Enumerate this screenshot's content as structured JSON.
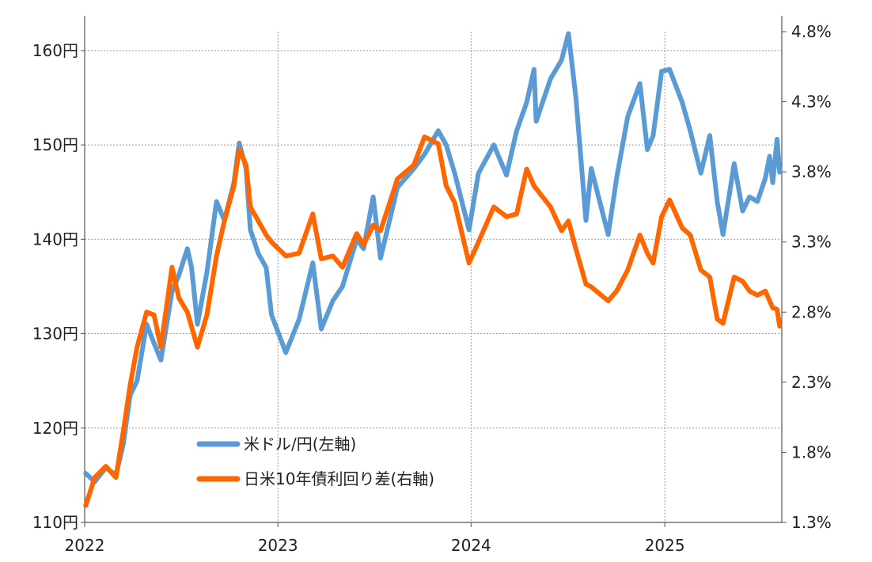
{
  "chart_data": {
    "type": "line",
    "x_axis": {
      "type": "date",
      "range": [
        "2022-01-01",
        "2025-08-10"
      ],
      "tick_labels": [
        "2022",
        "2023",
        "2024",
        "2025"
      ],
      "tick_dates": [
        "2022-01-01",
        "2023-01-01",
        "2024-01-01",
        "2025-01-01"
      ]
    },
    "y_left": {
      "range": [
        110,
        162
      ],
      "tick_values": [
        110,
        120,
        130,
        140,
        150,
        160
      ],
      "tick_labels": [
        "110円",
        "120円",
        "130円",
        "140円",
        "150円",
        "160円"
      ],
      "grid": true
    },
    "y_right": {
      "range": [
        1.3,
        4.8
      ],
      "tick_values": [
        1.3,
        1.8,
        2.3,
        2.8,
        3.3,
        3.8,
        4.3,
        4.8
      ],
      "tick_labels": [
        "1.3%",
        "1.8%",
        "2.3%",
        "2.8%",
        "3.3%",
        "3.8%",
        "4.3%",
        "4.8%"
      ]
    },
    "legend": {
      "placement": "bottom-center"
    },
    "series": [
      {
        "name": "米ドル/円(左軸)",
        "axis": "left",
        "color": "#5b9bd5",
        "points": [
          [
            "2022-01-03",
            115.2
          ],
          [
            "2022-01-20",
            114.3
          ],
          [
            "2022-02-10",
            115.8
          ],
          [
            "2022-03-01",
            115.0
          ],
          [
            "2022-03-15",
            118.3
          ],
          [
            "2022-03-28",
            123.5
          ],
          [
            "2022-04-10",
            125.0
          ],
          [
            "2022-04-28",
            131.0
          ],
          [
            "2022-05-12",
            129.0
          ],
          [
            "2022-05-25",
            127.2
          ],
          [
            "2022-06-15",
            134.5
          ],
          [
            "2022-06-28",
            136.2
          ],
          [
            "2022-07-14",
            139.0
          ],
          [
            "2022-07-22",
            137.0
          ],
          [
            "2022-08-02",
            131.0
          ],
          [
            "2022-08-20",
            136.5
          ],
          [
            "2022-09-07",
            144.0
          ],
          [
            "2022-09-22",
            142.0
          ],
          [
            "2022-10-10",
            146.0
          ],
          [
            "2022-10-20",
            150.2
          ],
          [
            "2022-11-02",
            147.5
          ],
          [
            "2022-11-10",
            141.0
          ],
          [
            "2022-11-25",
            138.5
          ],
          [
            "2022-12-10",
            137.0
          ],
          [
            "2022-12-20",
            132.0
          ],
          [
            "2023-01-16",
            128.0
          ],
          [
            "2023-02-10",
            131.5
          ],
          [
            "2023-03-08",
            137.5
          ],
          [
            "2023-03-24",
            130.5
          ],
          [
            "2023-04-15",
            133.5
          ],
          [
            "2023-05-03",
            135.0
          ],
          [
            "2023-05-30",
            140.0
          ],
          [
            "2023-06-12",
            139.0
          ],
          [
            "2023-06-30",
            144.5
          ],
          [
            "2023-07-14",
            138.0
          ],
          [
            "2023-08-15",
            145.5
          ],
          [
            "2023-09-15",
            147.5
          ],
          [
            "2023-10-05",
            149.0
          ],
          [
            "2023-10-31",
            151.5
          ],
          [
            "2023-11-15",
            150.0
          ],
          [
            "2023-12-01",
            147.0
          ],
          [
            "2023-12-28",
            141.0
          ],
          [
            "2024-01-15",
            147.0
          ],
          [
            "2024-02-13",
            150.0
          ],
          [
            "2024-03-08",
            146.8
          ],
          [
            "2024-03-27",
            151.5
          ],
          [
            "2024-04-15",
            154.5
          ],
          [
            "2024-04-29",
            158.0
          ],
          [
            "2024-05-03",
            152.5
          ],
          [
            "2024-05-30",
            157.0
          ],
          [
            "2024-06-20",
            159.0
          ],
          [
            "2024-07-03",
            161.8
          ],
          [
            "2024-07-17",
            155.0
          ],
          [
            "2024-08-05",
            142.0
          ],
          [
            "2024-08-15",
            147.5
          ],
          [
            "2024-09-16",
            140.5
          ],
          [
            "2024-10-02",
            146.5
          ],
          [
            "2024-10-23",
            153.0
          ],
          [
            "2024-11-15",
            156.5
          ],
          [
            "2024-11-29",
            149.5
          ],
          [
            "2024-12-10",
            151.0
          ],
          [
            "2024-12-26",
            157.8
          ],
          [
            "2025-01-10",
            158.0
          ],
          [
            "2025-02-03",
            154.5
          ],
          [
            "2025-02-18",
            151.5
          ],
          [
            "2025-03-10",
            147.0
          ],
          [
            "2025-03-27",
            151.0
          ],
          [
            "2025-04-10",
            144.0
          ],
          [
            "2025-04-21",
            140.5
          ],
          [
            "2025-05-12",
            148.0
          ],
          [
            "2025-05-28",
            143.0
          ],
          [
            "2025-06-10",
            144.5
          ],
          [
            "2025-06-25",
            144.0
          ],
          [
            "2025-07-10",
            146.5
          ],
          [
            "2025-07-18",
            148.8
          ],
          [
            "2025-07-24",
            146.0
          ],
          [
            "2025-08-01",
            150.6
          ],
          [
            "2025-08-06",
            147.1
          ]
        ]
      },
      {
        "name": "日米10年債利回り差(右軸)",
        "axis": "right",
        "color": "#ff6600",
        "points": [
          [
            "2022-01-03",
            1.42
          ],
          [
            "2022-01-20",
            1.62
          ],
          [
            "2022-02-10",
            1.7
          ],
          [
            "2022-03-01",
            1.62
          ],
          [
            "2022-03-15",
            1.95
          ],
          [
            "2022-03-28",
            2.28
          ],
          [
            "2022-04-10",
            2.55
          ],
          [
            "2022-04-28",
            2.8
          ],
          [
            "2022-05-12",
            2.78
          ],
          [
            "2022-05-25",
            2.55
          ],
          [
            "2022-06-15",
            3.12
          ],
          [
            "2022-06-28",
            2.9
          ],
          [
            "2022-07-14",
            2.8
          ],
          [
            "2022-08-02",
            2.55
          ],
          [
            "2022-08-20",
            2.78
          ],
          [
            "2022-09-07",
            3.2
          ],
          [
            "2022-09-22",
            3.45
          ],
          [
            "2022-10-10",
            3.7
          ],
          [
            "2022-10-20",
            3.96
          ],
          [
            "2022-11-02",
            3.85
          ],
          [
            "2022-11-10",
            3.55
          ],
          [
            "2022-11-25",
            3.45
          ],
          [
            "2022-12-10",
            3.35
          ],
          [
            "2022-12-20",
            3.3
          ],
          [
            "2023-01-16",
            3.2
          ],
          [
            "2023-02-10",
            3.22
          ],
          [
            "2023-03-08",
            3.5
          ],
          [
            "2023-03-24",
            3.18
          ],
          [
            "2023-04-15",
            3.2
          ],
          [
            "2023-05-03",
            3.12
          ],
          [
            "2023-05-30",
            3.36
          ],
          [
            "2023-06-12",
            3.28
          ],
          [
            "2023-06-30",
            3.42
          ],
          [
            "2023-07-14",
            3.38
          ],
          [
            "2023-08-15",
            3.75
          ],
          [
            "2023-09-15",
            3.85
          ],
          [
            "2023-10-05",
            4.05
          ],
          [
            "2023-10-31",
            4.0
          ],
          [
            "2023-11-15",
            3.7
          ],
          [
            "2023-12-01",
            3.58
          ],
          [
            "2023-12-28",
            3.15
          ],
          [
            "2024-01-15",
            3.3
          ],
          [
            "2024-02-13",
            3.55
          ],
          [
            "2024-03-08",
            3.48
          ],
          [
            "2024-03-27",
            3.5
          ],
          [
            "2024-04-15",
            3.82
          ],
          [
            "2024-04-29",
            3.7
          ],
          [
            "2024-05-30",
            3.55
          ],
          [
            "2024-06-20",
            3.38
          ],
          [
            "2024-07-03",
            3.45
          ],
          [
            "2024-07-17",
            3.25
          ],
          [
            "2024-08-05",
            3.0
          ],
          [
            "2024-08-15",
            2.98
          ],
          [
            "2024-09-16",
            2.88
          ],
          [
            "2024-10-02",
            2.95
          ],
          [
            "2024-10-23",
            3.1
          ],
          [
            "2024-11-15",
            3.35
          ],
          [
            "2024-11-29",
            3.22
          ],
          [
            "2024-12-10",
            3.15
          ],
          [
            "2024-12-26",
            3.48
          ],
          [
            "2025-01-10",
            3.6
          ],
          [
            "2025-02-03",
            3.4
          ],
          [
            "2025-02-18",
            3.35
          ],
          [
            "2025-03-10",
            3.1
          ],
          [
            "2025-03-27",
            3.05
          ],
          [
            "2025-04-10",
            2.75
          ],
          [
            "2025-04-21",
            2.72
          ],
          [
            "2025-05-12",
            3.05
          ],
          [
            "2025-05-28",
            3.02
          ],
          [
            "2025-06-10",
            2.95
          ],
          [
            "2025-06-25",
            2.92
          ],
          [
            "2025-07-10",
            2.95
          ],
          [
            "2025-07-18",
            2.88
          ],
          [
            "2025-07-24",
            2.83
          ],
          [
            "2025-08-01",
            2.82
          ],
          [
            "2025-08-06",
            2.7
          ]
        ]
      }
    ]
  }
}
